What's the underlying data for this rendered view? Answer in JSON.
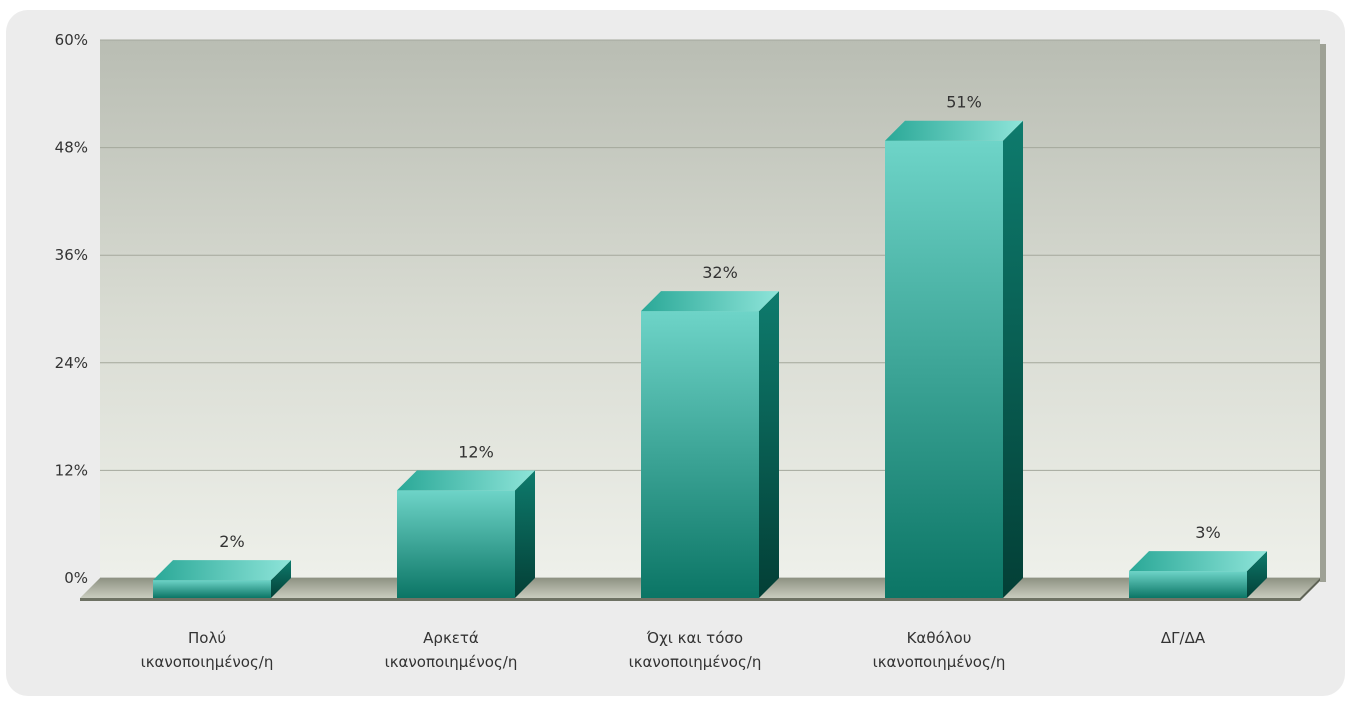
{
  "chart_data": {
    "type": "bar",
    "title": "",
    "xlabel": "",
    "ylabel": "",
    "ylim": [
      0,
      60
    ],
    "yticks": [
      "0%",
      "12%",
      "24%",
      "36%",
      "48%",
      "60%"
    ],
    "grid": true,
    "categories": [
      [
        "Πολύ",
        "ικανοποιημένος/η"
      ],
      [
        "Αρκετά",
        "ικανοποιημένος/η"
      ],
      [
        "Όχι και τόσο",
        "ικανοποιημένος/η"
      ],
      [
        "Καθόλου",
        "ικανοποιημένος/η"
      ],
      [
        "ΔΓ/ΔΑ"
      ]
    ],
    "values": [
      2,
      12,
      32,
      51,
      3
    ],
    "value_labels": [
      "2%",
      "12%",
      "32%",
      "51%",
      "3%"
    ],
    "bar_color": "#2fa89c"
  }
}
